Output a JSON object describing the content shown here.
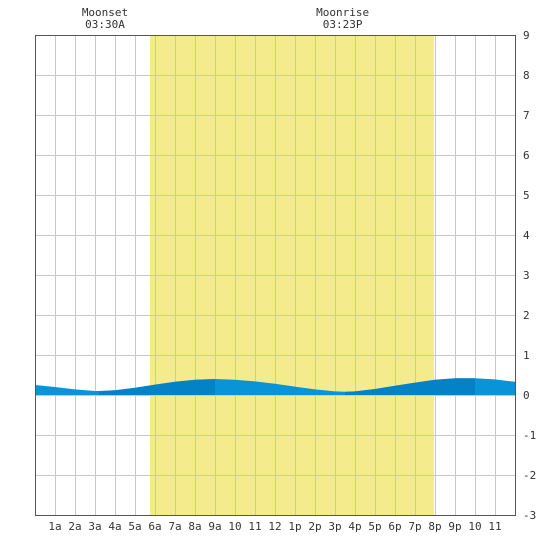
{
  "chart_data": {
    "type": "area",
    "events": [
      {
        "label": "Moonset",
        "time": "03:30A",
        "hour": 3.5
      },
      {
        "label": "Moonrise",
        "time": "03:23P",
        "hour": 15.38
      }
    ],
    "daylight": {
      "start_hour": 5.75,
      "end_hour": 19.95
    },
    "x_ticks": [
      "1a",
      "2a",
      "3a",
      "4a",
      "5a",
      "6a",
      "7a",
      "8a",
      "9a",
      "10",
      "11",
      "12",
      "1p",
      "2p",
      "3p",
      "4p",
      "5p",
      "6p",
      "7p",
      "8p",
      "9p",
      "10",
      "11"
    ],
    "xlim": [
      0,
      24
    ],
    "ylim": [
      -3,
      9
    ],
    "y_ticks": [
      "9",
      "8",
      "7",
      "6",
      "5",
      "4",
      "3",
      "2",
      "1",
      "0",
      "-1",
      "-2",
      "-3"
    ],
    "grid": true,
    "series": [
      {
        "x": [
          0,
          1,
          2,
          3,
          3.2,
          4,
          5,
          6,
          7,
          8,
          9,
          10,
          11,
          12,
          13,
          14,
          15,
          15.5,
          16,
          17,
          18,
          19,
          20,
          21,
          22,
          23,
          24
        ],
        "values": [
          0.25,
          0.2,
          0.14,
          0.1,
          0.1,
          0.12,
          0.18,
          0.26,
          0.33,
          0.38,
          0.4,
          0.38,
          0.34,
          0.28,
          0.21,
          0.14,
          0.09,
          0.08,
          0.09,
          0.15,
          0.23,
          0.31,
          0.38,
          0.42,
          0.42,
          0.39,
          0.33
        ]
      }
    ],
    "colors": {
      "daylight": "#f4ec8c",
      "water": "#0a94d8",
      "water_dark": "#0072b8",
      "grid": "#c8c8c8"
    }
  }
}
